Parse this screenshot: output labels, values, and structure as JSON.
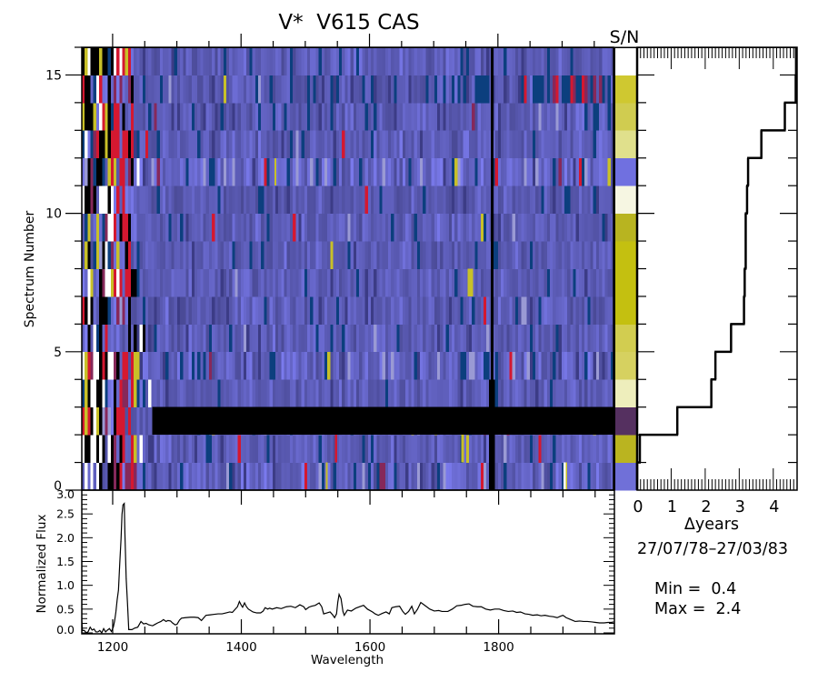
{
  "chart_data": [
    {
      "id": "dynamic-spectrum",
      "type": "heatmap",
      "title": "V*  V615 CAS",
      "xlabel": "",
      "ylabel": "Spectrum Number",
      "xlim": [
        1152,
        1980
      ],
      "ylim": [
        0,
        16
      ],
      "x_major_tick_step": 200,
      "x_minor_tick_step": 50,
      "y_tick_labels": [
        "0",
        "5",
        "10",
        "15"
      ],
      "y_major_tick_step": 5,
      "y_minor_tick_step": 1,
      "bin_width": 4.5,
      "noisy_region_end": 1262,
      "grid": false,
      "color_scale": {
        "min": 0.4,
        "max": 2.4,
        "min_label": "Min =  0.4",
        "max_label": "Max =  2.4",
        "colormap": [
          {
            "below": 0.42,
            "color": "#000000"
          },
          {
            "below": 0.68,
            "color": "#0c3f7e"
          },
          {
            "below": 0.78,
            "color": "#3c3c86"
          },
          {
            "below": 1.38,
            "color": "#4a4a96",
            "to_color": "#7c7cf0"
          },
          {
            "below": 1.5,
            "color": "#9a9ad4"
          },
          {
            "below": 1.65,
            "color": "#86285a"
          },
          {
            "below": 1.85,
            "color": "#d41830"
          },
          {
            "below": 2.1,
            "color": "#c8c028"
          },
          {
            "below": 2.3,
            "color": "#e8e6a8"
          },
          {
            "below": 99,
            "color": "#ffffff"
          }
        ]
      },
      "rows": [
        {
          "spectrum": 0,
          "base": 1.05,
          "variability": 1.5,
          "dark_rate": 0.05,
          "bright_rate": 0.05
        },
        {
          "spectrum": 1,
          "base": 1.0,
          "variability": 1.1,
          "dark_rate": 0.06,
          "bright_rate": 0.03
        },
        {
          "spectrum": 2,
          "base": 1.0,
          "variability": 1.0,
          "dark_rate": 0.05,
          "bright_rate": 0.03
        },
        {
          "spectrum": 3,
          "base": 0.98,
          "variability": 0.9,
          "dark_rate": 0.03,
          "bright_rate": 0.01
        },
        {
          "spectrum": 4,
          "base": 1.02,
          "variability": 1.5,
          "dark_rate": 0.07,
          "bright_rate": 0.04
        },
        {
          "spectrum": 5,
          "base": 1.0,
          "variability": 1.0,
          "dark_rate": 0.06,
          "bright_rate": 0.02
        },
        {
          "spectrum": 6,
          "base": 1.0,
          "variability": 1.0,
          "dark_rate": 0.05,
          "bright_rate": 0.02
        },
        {
          "spectrum": 7,
          "base": 1.0,
          "variability": 0.9,
          "dark_rate": 0.03,
          "bright_rate": 0.01
        },
        {
          "spectrum": 8,
          "base": 1.0,
          "variability": 0.9,
          "dark_rate": 0.04,
          "bright_rate": 0.01
        },
        {
          "spectrum": 9,
          "base": 1.0,
          "variability": 1.0,
          "dark_rate": 0.05,
          "bright_rate": 0.02
        },
        {
          "spectrum": 10,
          "base": 0.95,
          "variability": 0.8,
          "dark_rate": 0.05,
          "bright_rate": 0.01
        },
        {
          "spectrum": 11,
          "base": 1.1,
          "variability": 1.6,
          "dark_rate": 0.04,
          "bright_rate": 0.04
        },
        {
          "spectrum": 12,
          "base": 1.0,
          "variability": 0.9,
          "dark_rate": 0.05,
          "bright_rate": 0.01
        },
        {
          "spectrum": 13,
          "base": 0.98,
          "variability": 1.0,
          "dark_rate": 0.08,
          "bright_rate": 0.02
        },
        {
          "spectrum": 14,
          "base": 0.95,
          "variability": 1.0,
          "dark_rate": 0.12,
          "bright_rate": 0.03
        },
        {
          "spectrum": 15,
          "base": 1.0,
          "variability": 1.0,
          "dark_rate": 0.05,
          "bright_rate": 0.01
        }
      ],
      "features": [
        {
          "spectrum": 14,
          "from": 1840,
          "to": 1965,
          "value": 1.72,
          "rate": 0.3
        },
        {
          "spectrum": 14,
          "from": 1840,
          "to": 1965,
          "value": 1.58,
          "rate": 0.25
        },
        {
          "spectrum": 14,
          "from": 1700,
          "to": 1980,
          "value": 0.6,
          "rate": 0.25
        },
        {
          "spectrum": 7,
          "from": 1753,
          "to": 1761,
          "value": 1.95,
          "rate": 1
        },
        {
          "spectrum": 1,
          "from": 1743,
          "to": 1747,
          "value": 1.95,
          "rate": 1
        },
        {
          "spectrum": 1,
          "from": 1546,
          "to": 1550,
          "value": 1.75,
          "rate": 1
        },
        {
          "spectrum": 0,
          "from": 1902,
          "to": 1906,
          "value": 2.4,
          "rate": 1
        },
        {
          "spectrum": 0,
          "from": 1906,
          "to": 1908,
          "value": 1.95,
          "rate": 1
        },
        {
          "spectrum": 0,
          "from": 1532,
          "to": 1535,
          "value": 1.95,
          "rate": 1
        },
        {
          "spectrum": 11,
          "from": 1452,
          "to": 1455,
          "value": 1.95,
          "rate": 1
        }
      ],
      "missing": [
        {
          "spectrum": 2,
          "from": 1262,
          "to": 1980
        }
      ],
      "bad_columns": [
        {
          "from": 1789,
          "to": 1793,
          "spectra": "all"
        },
        {
          "from": 1786,
          "to": 1795,
          "spectra": [
            0,
            1,
            3
          ]
        }
      ]
    },
    {
      "id": "sn-column",
      "type": "heatmap",
      "label": "S/N",
      "colors": [
        "#7070d8",
        "#bab420",
        "#553060",
        "#eeeebc",
        "#d6d160",
        "#d2cd50",
        "#c4c010",
        "#c4c010",
        "#c4c010",
        "#b8b420",
        "#f6f6e2",
        "#7070e0",
        "#e0e08c",
        "#d0cc50",
        "#cfc830",
        "#ffffff"
      ]
    },
    {
      "id": "observation-epochs",
      "type": "line",
      "xlabel": "Δyears",
      "xlim": [
        0,
        4.7
      ],
      "ylim": [
        0,
        16
      ],
      "x_tick_labels": [
        "0",
        "1",
        "2",
        "3",
        "4"
      ],
      "x_minor_tick_step": 0.1,
      "y_major_tick_step": 5,
      "delta_years": [
        0.0,
        0.08,
        1.18,
        2.18,
        2.3,
        2.76,
        3.14,
        3.16,
        3.19,
        3.19,
        3.23,
        3.26,
        3.65,
        4.34,
        4.66,
        4.67
      ],
      "date_range": "27/07/78–27/03/83"
    },
    {
      "id": "mean-spectrum",
      "type": "line",
      "xlabel": "Wavelength",
      "ylabel": "Normalized Flux",
      "xlim": [
        1152,
        1980
      ],
      "ylim": [
        0,
        3
      ],
      "x_tick_labels": [
        "1200",
        "1400",
        "1600",
        "1800"
      ],
      "x_minor_tick_step": 50,
      "y_tick_labels": [
        "0.0",
        "0.5",
        "1.0",
        "1.5",
        "2.0",
        "2.5",
        "3.0"
      ],
      "y_minor_tick_step": 0.1,
      "points": [
        [
          1152,
          0.26
        ],
        [
          1153,
          0.05
        ],
        [
          1156,
          0.05
        ],
        [
          1159,
          0.0
        ],
        [
          1162,
          0.03
        ],
        [
          1165,
          0.12
        ],
        [
          1168,
          0.06
        ],
        [
          1171,
          0.08
        ],
        [
          1174,
          0.02
        ],
        [
          1177,
          0.02
        ],
        [
          1180,
          0.05
        ],
        [
          1183,
          0.0
        ],
        [
          1186,
          0.09
        ],
        [
          1189,
          0.02
        ],
        [
          1192,
          0.06
        ],
        [
          1195,
          0.09
        ],
        [
          1198,
          0.03
        ],
        [
          1201,
          0.12
        ],
        [
          1203,
          0.25
        ],
        [
          1205,
          0.44
        ],
        [
          1207,
          0.7
        ],
        [
          1209,
          0.9
        ],
        [
          1211,
          1.46
        ],
        [
          1213,
          1.97
        ],
        [
          1214.5,
          2.49
        ],
        [
          1216,
          2.69
        ],
        [
          1218,
          2.72
        ],
        [
          1219,
          2.1
        ],
        [
          1221,
          1.14
        ],
        [
          1223,
          0.63
        ],
        [
          1225,
          0.07
        ],
        [
          1230,
          0.07
        ],
        [
          1234,
          0.1
        ],
        [
          1239,
          0.12
        ],
        [
          1244,
          0.24
        ],
        [
          1248,
          0.19
        ],
        [
          1252,
          0.2
        ],
        [
          1256,
          0.17
        ],
        [
          1262,
          0.15
        ],
        [
          1266,
          0.18
        ],
        [
          1270,
          0.21
        ],
        [
          1275,
          0.24
        ],
        [
          1279,
          0.28
        ],
        [
          1283,
          0.24
        ],
        [
          1286,
          0.26
        ],
        [
          1290,
          0.25
        ],
        [
          1293,
          0.21
        ],
        [
          1297,
          0.17
        ],
        [
          1300,
          0.18
        ],
        [
          1304,
          0.27
        ],
        [
          1307,
          0.31
        ],
        [
          1313,
          0.32
        ],
        [
          1321,
          0.33
        ],
        [
          1327,
          0.33
        ],
        [
          1333,
          0.32
        ],
        [
          1338,
          0.26
        ],
        [
          1345,
          0.37
        ],
        [
          1352,
          0.38
        ],
        [
          1358,
          0.39
        ],
        [
          1364,
          0.4
        ],
        [
          1370,
          0.4
        ],
        [
          1376,
          0.42
        ],
        [
          1382,
          0.44
        ],
        [
          1386,
          0.43
        ],
        [
          1390,
          0.49
        ],
        [
          1394,
          0.55
        ],
        [
          1397,
          0.66
        ],
        [
          1400,
          0.58
        ],
        [
          1402,
          0.54
        ],
        [
          1405,
          0.63
        ],
        [
          1408,
          0.55
        ],
        [
          1411,
          0.5
        ],
        [
          1418,
          0.44
        ],
        [
          1424,
          0.42
        ],
        [
          1430,
          0.42
        ],
        [
          1434,
          0.46
        ],
        [
          1437,
          0.53
        ],
        [
          1441,
          0.5
        ],
        [
          1444,
          0.52
        ],
        [
          1448,
          0.5
        ],
        [
          1455,
          0.53
        ],
        [
          1462,
          0.51
        ],
        [
          1470,
          0.55
        ],
        [
          1477,
          0.56
        ],
        [
          1484,
          0.53
        ],
        [
          1491,
          0.59
        ],
        [
          1497,
          0.55
        ],
        [
          1500,
          0.49
        ],
        [
          1505,
          0.54
        ],
        [
          1509,
          0.56
        ],
        [
          1515,
          0.58
        ],
        [
          1521,
          0.63
        ],
        [
          1525,
          0.55
        ],
        [
          1528,
          0.4
        ],
        [
          1533,
          0.42
        ],
        [
          1538,
          0.44
        ],
        [
          1542,
          0.38
        ],
        [
          1545,
          0.32
        ],
        [
          1548,
          0.4
        ],
        [
          1550,
          0.65
        ],
        [
          1552,
          0.81
        ],
        [
          1555,
          0.72
        ],
        [
          1558,
          0.45
        ],
        [
          1560,
          0.37
        ],
        [
          1565,
          0.48
        ],
        [
          1571,
          0.46
        ],
        [
          1578,
          0.52
        ],
        [
          1584,
          0.55
        ],
        [
          1590,
          0.58
        ],
        [
          1596,
          0.5
        ],
        [
          1604,
          0.44
        ],
        [
          1608,
          0.4
        ],
        [
          1613,
          0.37
        ],
        [
          1619,
          0.41
        ],
        [
          1625,
          0.44
        ],
        [
          1630,
          0.4
        ],
        [
          1634,
          0.53
        ],
        [
          1640,
          0.55
        ],
        [
          1646,
          0.56
        ],
        [
          1651,
          0.45
        ],
        [
          1655,
          0.39
        ],
        [
          1660,
          0.45
        ],
        [
          1665,
          0.56
        ],
        [
          1669,
          0.4
        ],
        [
          1674,
          0.5
        ],
        [
          1679,
          0.64
        ],
        [
          1685,
          0.58
        ],
        [
          1693,
          0.5
        ],
        [
          1700,
          0.46
        ],
        [
          1707,
          0.47
        ],
        [
          1712,
          0.45
        ],
        [
          1721,
          0.45
        ],
        [
          1728,
          0.5
        ],
        [
          1735,
          0.57
        ],
        [
          1742,
          0.58
        ],
        [
          1748,
          0.6
        ],
        [
          1754,
          0.61
        ],
        [
          1760,
          0.56
        ],
        [
          1767,
          0.55
        ],
        [
          1773,
          0.55
        ],
        [
          1780,
          0.5
        ],
        [
          1787,
          0.48
        ],
        [
          1794,
          0.5
        ],
        [
          1801,
          0.5
        ],
        [
          1808,
          0.47
        ],
        [
          1815,
          0.45
        ],
        [
          1822,
          0.46
        ],
        [
          1828,
          0.43
        ],
        [
          1834,
          0.44
        ],
        [
          1841,
          0.4
        ],
        [
          1847,
          0.39
        ],
        [
          1853,
          0.37
        ],
        [
          1860,
          0.38
        ],
        [
          1866,
          0.36
        ],
        [
          1872,
          0.37
        ],
        [
          1879,
          0.35
        ],
        [
          1885,
          0.34
        ],
        [
          1891,
          0.32
        ],
        [
          1896,
          0.35
        ],
        [
          1900,
          0.37
        ],
        [
          1905,
          0.32
        ],
        [
          1912,
          0.28
        ],
        [
          1919,
          0.24
        ],
        [
          1926,
          0.25
        ],
        [
          1932,
          0.24
        ],
        [
          1938,
          0.24
        ],
        [
          1945,
          0.23
        ],
        [
          1951,
          0.22
        ],
        [
          1957,
          0.21
        ],
        [
          1964,
          0.21
        ],
        [
          1970,
          0.22
        ],
        [
          1975,
          0.22
        ],
        [
          1979,
          0.23
        ]
      ]
    }
  ]
}
